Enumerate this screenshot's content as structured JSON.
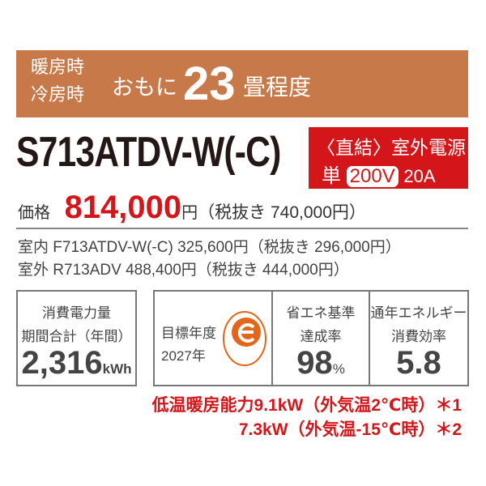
{
  "header": {
    "heating": "暖房時",
    "cooling": "冷房時",
    "mainly": "おもに",
    "tatami": "23",
    "unit": "畳程度",
    "bg_color": "#c8794a"
  },
  "model": "S713ATDV-W(-C)",
  "power": {
    "line1": "〈直結〉室外電源",
    "single": "単",
    "voltage": "200V",
    "ampere": "20A",
    "bg_color": "#d4161b"
  },
  "price": {
    "label": "価格",
    "value": "814,000",
    "yen": "円",
    "tax_excl": "（税抜き 740,000円）"
  },
  "indoor": {
    "label": "室内",
    "model": "F713ATDV-W(-C)",
    "price": "325,600円",
    "tax_excl": "（税抜き 296,000円）"
  },
  "outdoor": {
    "label": "室外",
    "model": "R713ADV",
    "price": "488,400円",
    "tax_excl": "（税抜き 444,000円）"
  },
  "specs": {
    "consumption": {
      "label1": "消費電力量",
      "label2": "期間合計（年間）",
      "value": "2,316",
      "unit": "kWh"
    },
    "target": {
      "label1": "目標年度",
      "label2": "2027年",
      "icon": "energy-saving-e-mark"
    },
    "achievement": {
      "label1": "省エネ基準",
      "label2": "達成率",
      "value": "98",
      "unit": "%"
    },
    "efficiency": {
      "label1": "通年エネルギー",
      "label2": "消費効率",
      "value": "5.8"
    }
  },
  "low_temp": {
    "line1": "低温暖房能力9.1kW（外気温2℃時）＊1",
    "line2": "7.3kW（外気温-15℃時）＊2"
  }
}
